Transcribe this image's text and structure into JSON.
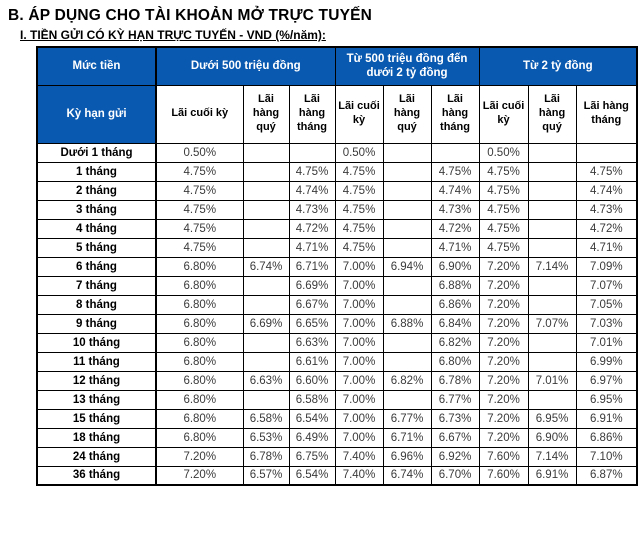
{
  "page": {
    "title": "B. ÁP DỤNG CHO TÀI KHOẢN MỞ TRỰC TUYẾN",
    "subtitle": "I. TIỀN GỬI CÓ KỲ HẠN TRỰC TUYẾN - VND (%/năm):"
  },
  "colors": {
    "header_blue": "#0a59b0",
    "header_text": "#ffffff",
    "grid_border": "#000000",
    "value_text": "#3a3a3a"
  },
  "table": {
    "corner_top_label": "Mức tiền",
    "corner_bottom_label": "Kỳ hạn gửi",
    "groups": [
      {
        "label": "Dưới 500 triệu đồng"
      },
      {
        "label": "Từ 500 triệu đồng đến dưới 2 tỷ đồng"
      },
      {
        "label": "Từ 2 tỷ đồng"
      }
    ],
    "sub_headers": [
      "Lãi cuối kỳ",
      "Lãi hàng quý",
      "Lãi hàng tháng"
    ],
    "rows": [
      {
        "term": "Dưới 1 tháng",
        "values": [
          "0.50%",
          "",
          "",
          "0.50%",
          "",
          "",
          "0.50%",
          "",
          ""
        ]
      },
      {
        "term": "1 tháng",
        "values": [
          "4.75%",
          "",
          "4.75%",
          "4.75%",
          "",
          "4.75%",
          "4.75%",
          "",
          "4.75%"
        ]
      },
      {
        "term": "2 tháng",
        "values": [
          "4.75%",
          "",
          "4.74%",
          "4.75%",
          "",
          "4.74%",
          "4.75%",
          "",
          "4.74%"
        ]
      },
      {
        "term": "3 tháng",
        "values": [
          "4.75%",
          "",
          "4.73%",
          "4.75%",
          "",
          "4.73%",
          "4.75%",
          "",
          "4.73%"
        ]
      },
      {
        "term": "4 tháng",
        "values": [
          "4.75%",
          "",
          "4.72%",
          "4.75%",
          "",
          "4.72%",
          "4.75%",
          "",
          "4.72%"
        ]
      },
      {
        "term": "5 tháng",
        "values": [
          "4.75%",
          "",
          "4.71%",
          "4.75%",
          "",
          "4.71%",
          "4.75%",
          "",
          "4.71%"
        ]
      },
      {
        "term": "6 tháng",
        "values": [
          "6.80%",
          "6.74%",
          "6.71%",
          "7.00%",
          "6.94%",
          "6.90%",
          "7.20%",
          "7.14%",
          "7.09%"
        ]
      },
      {
        "term": "7 tháng",
        "values": [
          "6.80%",
          "",
          "6.69%",
          "7.00%",
          "",
          "6.88%",
          "7.20%",
          "",
          "7.07%"
        ]
      },
      {
        "term": "8 tháng",
        "values": [
          "6.80%",
          "",
          "6.67%",
          "7.00%",
          "",
          "6.86%",
          "7.20%",
          "",
          "7.05%"
        ]
      },
      {
        "term": "9 tháng",
        "values": [
          "6.80%",
          "6.69%",
          "6.65%",
          "7.00%",
          "6.88%",
          "6.84%",
          "7.20%",
          "7.07%",
          "7.03%"
        ]
      },
      {
        "term": "10 tháng",
        "values": [
          "6.80%",
          "",
          "6.63%",
          "7.00%",
          "",
          "6.82%",
          "7.20%",
          "",
          "7.01%"
        ]
      },
      {
        "term": "11 tháng",
        "values": [
          "6.80%",
          "",
          "6.61%",
          "7.00%",
          "",
          "6.80%",
          "7.20%",
          "",
          "6.99%"
        ]
      },
      {
        "term": "12 tháng",
        "values": [
          "6.80%",
          "6.63%",
          "6.60%",
          "7.00%",
          "6.82%",
          "6.78%",
          "7.20%",
          "7.01%",
          "6.97%"
        ]
      },
      {
        "term": "13 tháng",
        "values": [
          "6.80%",
          "",
          "6.58%",
          "7.00%",
          "",
          "6.77%",
          "7.20%",
          "",
          "6.95%"
        ]
      },
      {
        "term": "15 tháng",
        "values": [
          "6.80%",
          "6.58%",
          "6.54%",
          "7.00%",
          "6.77%",
          "6.73%",
          "7.20%",
          "6.95%",
          "6.91%"
        ]
      },
      {
        "term": "18 tháng",
        "values": [
          "6.80%",
          "6.53%",
          "6.49%",
          "7.00%",
          "6.71%",
          "6.67%",
          "7.20%",
          "6.90%",
          "6.86%"
        ]
      },
      {
        "term": "24 tháng",
        "values": [
          "7.20%",
          "6.78%",
          "6.75%",
          "7.40%",
          "6.96%",
          "6.92%",
          "7.60%",
          "7.14%",
          "7.10%"
        ]
      },
      {
        "term": "36 tháng",
        "values": [
          "7.20%",
          "6.57%",
          "6.54%",
          "7.40%",
          "6.74%",
          "6.70%",
          "7.60%",
          "6.91%",
          "6.87%"
        ]
      }
    ]
  }
}
